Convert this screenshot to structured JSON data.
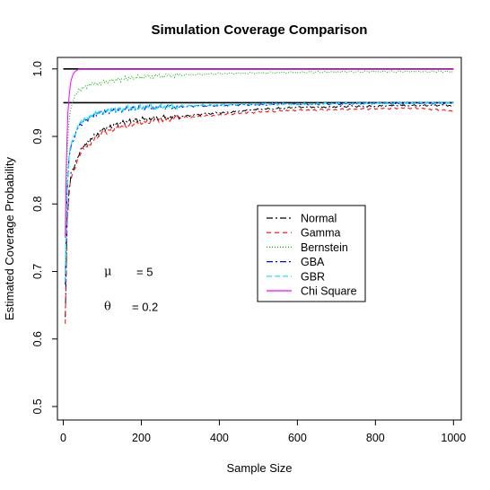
{
  "chart_data": {
    "type": "line",
    "title": "Simulation Coverage Comparison",
    "xlabel": "Sample Size",
    "ylabel": "Estimated Coverage Probability",
    "xlim": [
      -15,
      1020
    ],
    "ylim": [
      0.48,
      1.017
    ],
    "xticks": [
      0,
      200,
      400,
      600,
      800,
      1000
    ],
    "yticks": [
      0.5,
      0.6,
      0.7,
      0.8,
      0.9,
      1.0
    ],
    "xtick_labels": [
      "0",
      "200",
      "400",
      "600",
      "800",
      "1000"
    ],
    "ytick_labels": [
      "0.5",
      "0.6",
      "0.7",
      "0.8",
      "0.9",
      "1.0"
    ],
    "reference_lines": [
      0.95,
      1.0
    ],
    "grid": false,
    "legend_position": "right-center",
    "annotations": [
      {
        "symbol": "μ",
        "text": "= 5",
        "x": 100,
        "y": 0.7
      },
      {
        "symbol": "θ",
        "text": "= 0.2",
        "x": 100,
        "y": 0.648
      }
    ],
    "series": [
      {
        "name": "Normal",
        "color": "#000000",
        "dash": "7,3,2,3",
        "x": [
          5,
          10,
          15,
          20,
          30,
          40,
          50,
          70,
          100,
          150,
          200,
          300,
          400,
          500,
          600,
          700,
          800,
          900,
          1000
        ],
        "values": [
          0.63,
          0.78,
          0.82,
          0.845,
          0.86,
          0.875,
          0.885,
          0.895,
          0.91,
          0.92,
          0.925,
          0.93,
          0.935,
          0.94,
          0.943,
          0.944,
          0.945,
          0.946,
          0.946
        ]
      },
      {
        "name": "Gamma",
        "color": "#ff0000",
        "dash": "5,4",
        "x": [
          5,
          10,
          15,
          20,
          30,
          40,
          50,
          70,
          100,
          150,
          200,
          300,
          400,
          500,
          600,
          700,
          800,
          900,
          1000
        ],
        "values": [
          0.62,
          0.775,
          0.815,
          0.84,
          0.855,
          0.87,
          0.88,
          0.89,
          0.905,
          0.915,
          0.92,
          0.928,
          0.932,
          0.936,
          0.939,
          0.94,
          0.941,
          0.942,
          0.938
        ]
      },
      {
        "name": "Bernstein",
        "color": "#00bb00",
        "dash": "1,2",
        "x": [
          5,
          10,
          15,
          20,
          25,
          30,
          40,
          60,
          100,
          150,
          200,
          300,
          400,
          500,
          600,
          800,
          1000
        ],
        "values": [
          0.7,
          0.88,
          0.925,
          0.943,
          0.952,
          0.96,
          0.968,
          0.975,
          0.98,
          0.985,
          0.988,
          0.991,
          0.993,
          0.994,
          0.995,
          0.996,
          0.996
        ]
      },
      {
        "name": "GBA",
        "color": "#0000ff",
        "dash": "7,3,2,3",
        "x": [
          5,
          10,
          15,
          20,
          30,
          40,
          60,
          80,
          100,
          150,
          200,
          300,
          400,
          500,
          600,
          700,
          800,
          900,
          1000
        ],
        "values": [
          0.68,
          0.82,
          0.87,
          0.885,
          0.9,
          0.915,
          0.925,
          0.932,
          0.936,
          0.94,
          0.942,
          0.944,
          0.946,
          0.947,
          0.948,
          0.948,
          0.949,
          0.949,
          0.95
        ]
      },
      {
        "name": "GBR",
        "color": "#00e5ff",
        "dash": "6,3",
        "x": [
          5,
          10,
          15,
          20,
          30,
          40,
          60,
          80,
          100,
          150,
          200,
          300,
          400,
          500,
          600,
          700,
          800,
          900,
          1000
        ],
        "values": [
          0.685,
          0.825,
          0.872,
          0.888,
          0.902,
          0.917,
          0.927,
          0.933,
          0.937,
          0.941,
          0.943,
          0.945,
          0.947,
          0.948,
          0.948,
          0.949,
          0.949,
          0.95,
          0.95
        ]
      },
      {
        "name": "Chi Square",
        "color": "#ff00ff",
        "dash": "",
        "x": [
          5,
          8,
          10,
          12,
          15,
          18,
          20,
          25,
          30,
          35,
          40,
          50,
          1000
        ],
        "values": [
          0.75,
          0.86,
          0.905,
          0.935,
          0.96,
          0.975,
          0.983,
          0.992,
          0.996,
          0.998,
          1.0,
          1.0,
          1.0
        ]
      }
    ]
  }
}
